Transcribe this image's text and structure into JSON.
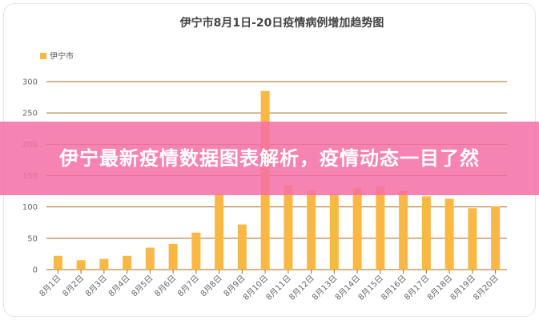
{
  "chart_data": {
    "type": "bar",
    "title": "伊宁市8月1日-20日疫情病例增加趋势图",
    "legend": {
      "position": "top-left",
      "entries": [
        "伊宁市"
      ]
    },
    "categories": [
      "8月1日",
      "8月2日",
      "8月3日",
      "8月4日",
      "8月5日",
      "8月6日",
      "8月7日",
      "8月8日",
      "8月9日",
      "8月10日",
      "8月11日",
      "8月12日",
      "8月13日",
      "8月14日",
      "8月15日",
      "8月16日",
      "8月17日",
      "8月18日",
      "8月19日",
      "8月20日"
    ],
    "series": [
      {
        "name": "伊宁市",
        "values": [
          22,
          15,
          17,
          22,
          35,
          41,
          59,
          120,
          72,
          285,
          135,
          126,
          120,
          130,
          133,
          126,
          117,
          113,
          98,
          101
        ]
      }
    ],
    "yticks": [
      0,
      50,
      100,
      150,
      200,
      250,
      300
    ],
    "ylim": [
      0,
      300
    ],
    "grid": true,
    "colors": {
      "bar": "#f9b843",
      "grid": "#a5681c",
      "text": "#666666",
      "title": "#444444"
    }
  },
  "overlay": {
    "banner_text": "伊宁最新疫情数据图表解析，疫情动态一目了然",
    "banner_color": "#f470a5"
  }
}
